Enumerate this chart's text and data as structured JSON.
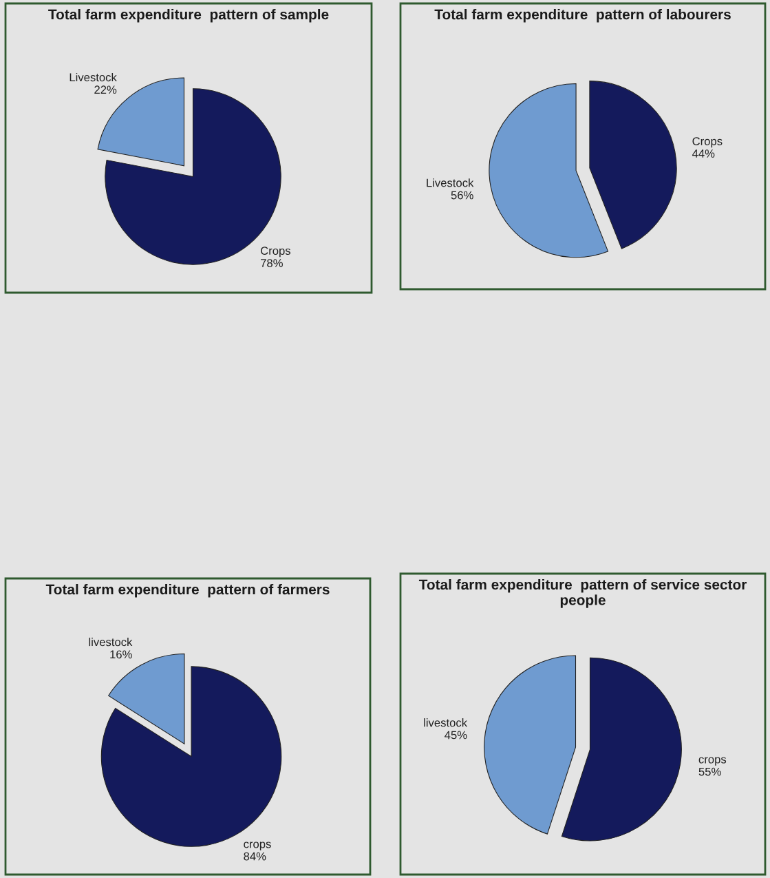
{
  "chart_data": [
    {
      "type": "pie",
      "title": "Total farm expenditure  pattern of sample",
      "categories": [
        "Livestock",
        "Crops"
      ],
      "values": [
        22,
        78
      ],
      "value_labels": [
        "22%",
        "78%"
      ],
      "colors": [
        "#6f9bd0",
        "#141a5c"
      ]
    },
    {
      "type": "pie",
      "title": "Total farm expenditure  pattern of labourers",
      "categories": [
        "Livestock",
        "Crops"
      ],
      "values": [
        56,
        44
      ],
      "value_labels": [
        "56%",
        "44%"
      ],
      "colors": [
        "#6f9bd0",
        "#141a5c"
      ]
    },
    {
      "type": "pie",
      "title": "Total farm expenditure  pattern of farmers",
      "categories": [
        "livestock",
        "crops"
      ],
      "values": [
        16,
        84
      ],
      "value_labels": [
        "16%",
        "84%"
      ],
      "colors": [
        "#6f9bd0",
        "#141a5c"
      ]
    },
    {
      "type": "pie",
      "title": "Total farm expenditure  pattern of service sector people",
      "categories": [
        "livestock",
        "crops"
      ],
      "values": [
        45,
        55
      ],
      "value_labels": [
        "45%",
        "55%"
      ],
      "colors": [
        "#6f9bd0",
        "#141a5c"
      ]
    }
  ]
}
